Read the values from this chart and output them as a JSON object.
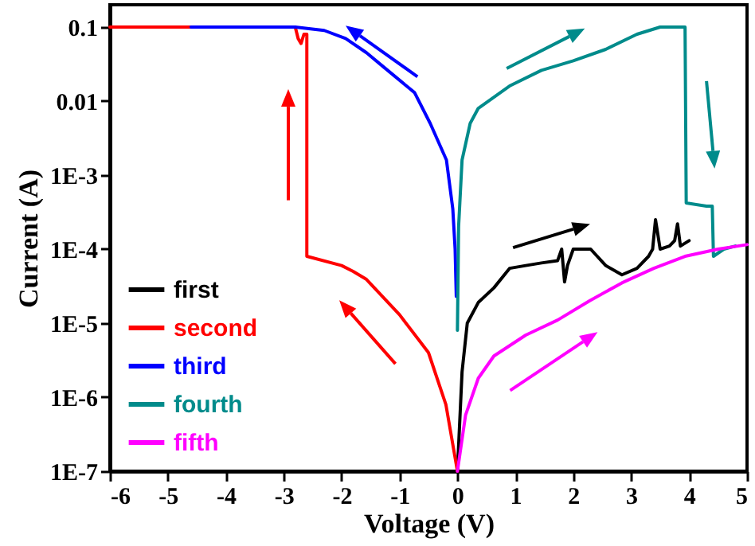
{
  "chart_data": {
    "type": "line",
    "xlabel": "Voltage (V)",
    "ylabel": "Current (A)",
    "log": true,
    "xlim": [
      -6,
      5
    ],
    "xticks": [
      -6,
      -5,
      -4,
      -3,
      -2,
      -1,
      0,
      1,
      2,
      3,
      4,
      5
    ],
    "ylim": [
      1e-07,
      0.2
    ],
    "yticks": [
      0.1,
      0.01,
      {
        "value": 0.001,
        "label": "1E-3"
      },
      {
        "value": 0.0001,
        "label": "1E-4"
      },
      {
        "value": 1e-05,
        "label": "1E-5"
      },
      {
        "value": 1e-06,
        "label": "1E-6"
      },
      {
        "value": 1e-07,
        "label": "1E-7"
      }
    ],
    "grid": false,
    "legend": "bottom left",
    "marker": "none",
    "line_style": "solid",
    "series": [
      {
        "name": "first",
        "color": "#000000",
        "x": [
          0,
          0.08,
          0.17,
          0.36,
          0.63,
          0.9,
          1.18,
          1.45,
          1.73,
          1.8,
          1.85,
          1.9,
          2.0,
          2.3,
          2.56,
          2.84,
          3.1,
          3.3,
          3.37,
          3.42,
          3.5,
          3.66,
          3.75,
          3.8,
          3.85,
          4.0
        ],
        "values": [
          1e-07,
          2.2e-06,
          1e-05,
          1.9e-05,
          3e-05,
          5.5e-05,
          6e-05,
          6.5e-05,
          7e-05,
          0.0001,
          3.6e-05,
          6e-05,
          0.0001,
          0.0001,
          6e-05,
          4.5e-05,
          5.5e-05,
          8e-05,
          0.0001,
          0.00025,
          0.0001,
          0.00011,
          0.00013,
          0.00022,
          0.00011,
          0.00013
        ]
      },
      {
        "name": "second",
        "color": "#ff0000",
        "x": [
          -6,
          -2.8,
          -2.75,
          -2.7,
          -2.65,
          -2.6,
          -2.6,
          -2,
          -1.8,
          -1.57,
          -1,
          -0.5,
          -0.2,
          0
        ],
        "values": [
          0.1,
          0.1,
          0.07,
          0.06,
          0.08,
          0.08,
          8e-05,
          6e-05,
          5e-05,
          3.9e-05,
          1.3e-05,
          4e-06,
          8e-07,
          1e-07
        ]
      },
      {
        "name": "third",
        "color": "#0000ff",
        "x": [
          -4.6,
          -2.8,
          -2.3,
          -1.93,
          -1.57,
          -1.3,
          -0.74,
          -0.47,
          -0.19,
          -0.08,
          -0.04,
          -0.02
        ],
        "values": [
          0.1,
          0.1,
          0.09,
          0.07,
          0.045,
          0.03,
          0.013,
          0.005,
          0.0016,
          0.00035,
          0.0001,
          2.3e-05
        ]
      },
      {
        "name": "fourth",
        "color": "#008b8b",
        "x": [
          0,
          0.02,
          0.08,
          0.22,
          0.36,
          0.9,
          1.45,
          2.0,
          2.56,
          3.1,
          3.5,
          3.93,
          3.95,
          4.3,
          4.4,
          4.42,
          4.6,
          4.8
        ],
        "values": [
          8e-06,
          0.0002,
          0.0016,
          0.005,
          0.008,
          0.016,
          0.026,
          0.035,
          0.05,
          0.08,
          0.1,
          0.1,
          0.00042,
          0.00038,
          0.00038,
          8e-05,
          0.0001,
          0.00011
        ]
      },
      {
        "name": "fifth",
        "color": "#ff00ff",
        "x": [
          0,
          0.14,
          0.36,
          0.63,
          1.18,
          1.73,
          2.28,
          2.84,
          3.39,
          3.93,
          4.5,
          5.0
        ],
        "values": [
          1e-07,
          5.7e-07,
          1.8e-06,
          3.6e-06,
          6.9e-06,
          1.1e-05,
          2e-05,
          3.5e-05,
          5.5e-05,
          8e-05,
          0.0001,
          0.000115
        ]
      }
    ]
  }
}
